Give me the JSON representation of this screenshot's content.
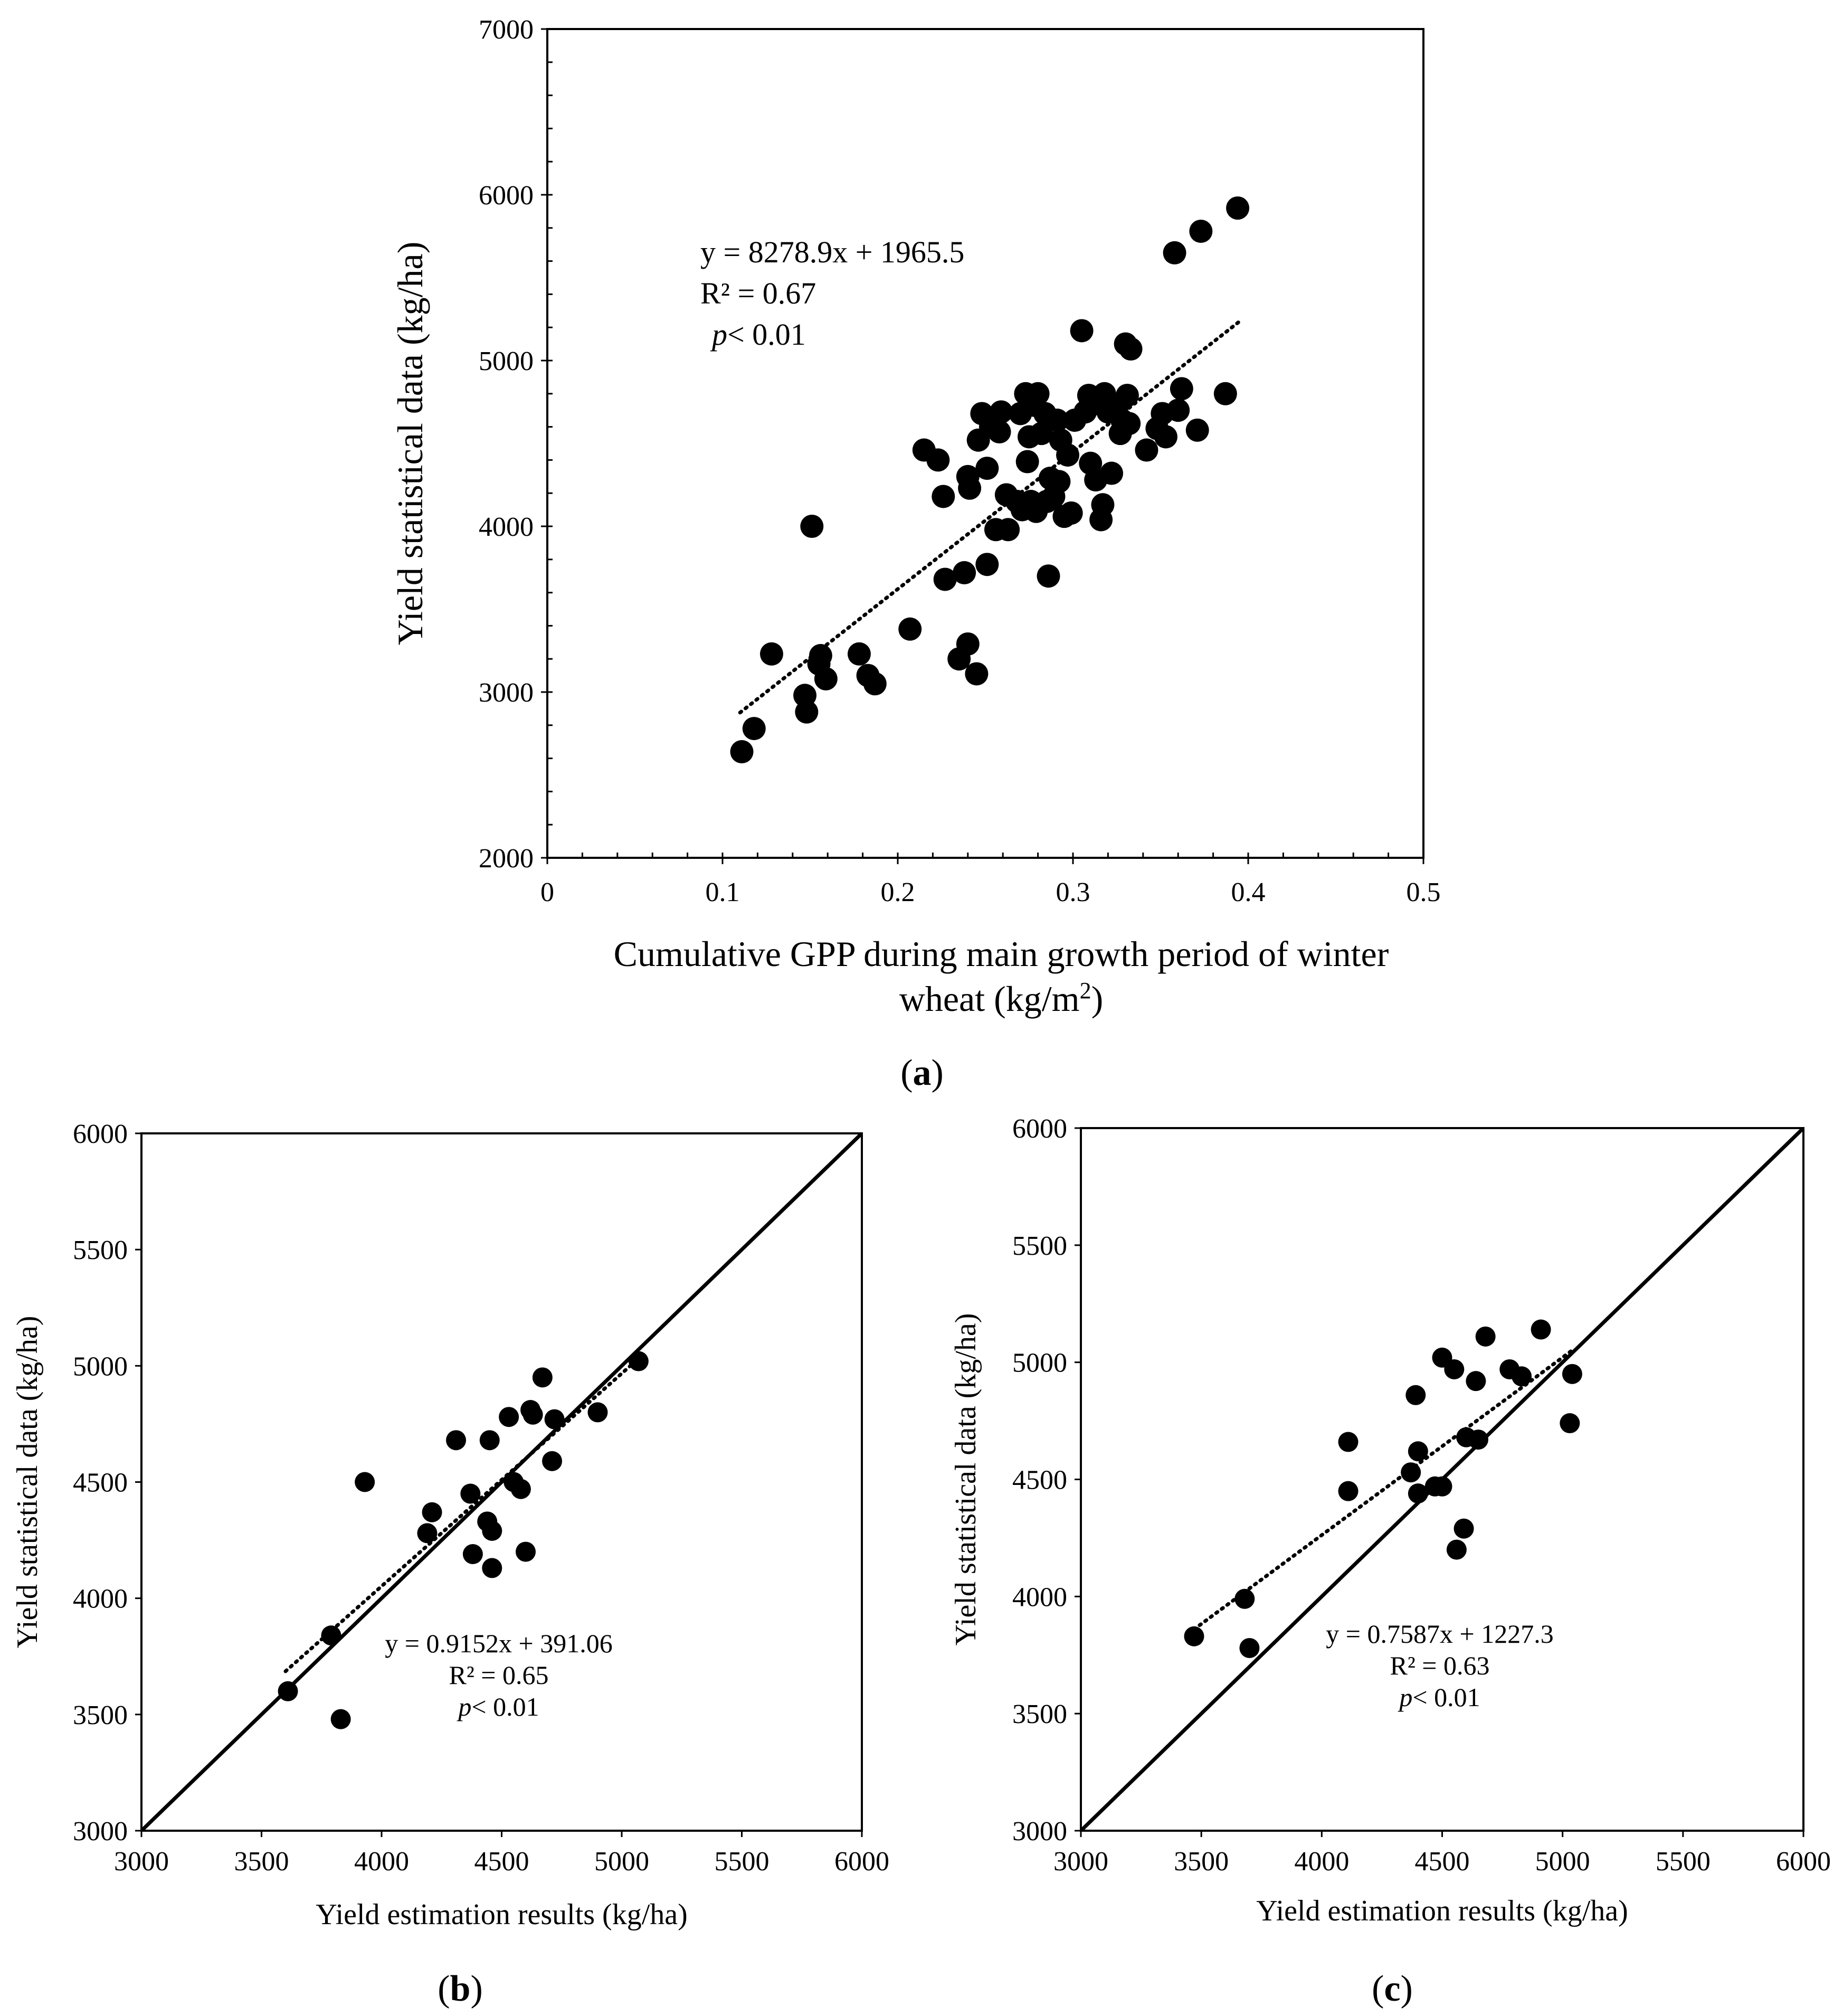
{
  "figure_captions": [
    "a",
    "b",
    "c"
  ],
  "chart_data": [
    {
      "id": "a",
      "type": "scatter",
      "caption": "a",
      "xlabel_lines": [
        "Cumulative GPP during main growth period of winter",
        "wheat (kg/m"
      ],
      "xlabel_sup": "2",
      "xlabel_close": ")",
      "ylabel": "Yield statistical data (kg/ha)",
      "xlim": [
        0,
        0.5
      ],
      "ylim": [
        2000,
        7000
      ],
      "xticks": [
        0,
        0.1,
        0.2,
        0.3,
        0.4,
        0.5
      ],
      "xtick_labels": [
        "0",
        "0.1",
        "0.2",
        "0.3",
        "0.4",
        "0.5"
      ],
      "yticks": [
        2000,
        3000,
        4000,
        5000,
        6000,
        7000
      ],
      "ytick_labels": [
        "2000",
        "3000",
        "4000",
        "5000",
        "6000",
        "7000"
      ],
      "equation": "y = 8278.9x + 1965.5",
      "r2": "R² = 0.67",
      "p_italic": "p",
      "p_rest": "< 0.01",
      "trendline": {
        "slope": 8278.9,
        "intercept": 1965.5,
        "x_range": [
          0.11,
          0.395
        ]
      },
      "points": [
        [
          0.111,
          2640
        ],
        [
          0.118,
          2780
        ],
        [
          0.128,
          3230
        ],
        [
          0.147,
          2980
        ],
        [
          0.148,
          2880
        ],
        [
          0.151,
          4000
        ],
        [
          0.156,
          3220
        ],
        [
          0.155,
          3170
        ],
        [
          0.159,
          3080
        ],
        [
          0.178,
          3230
        ],
        [
          0.183,
          3100
        ],
        [
          0.187,
          3050
        ],
        [
          0.207,
          3380
        ],
        [
          0.215,
          4460
        ],
        [
          0.223,
          4400
        ],
        [
          0.226,
          4180
        ],
        [
          0.227,
          3680
        ],
        [
          0.235,
          3200
        ],
        [
          0.238,
          3720
        ],
        [
          0.24,
          3290
        ],
        [
          0.24,
          4300
        ],
        [
          0.241,
          4230
        ],
        [
          0.245,
          3110
        ],
        [
          0.246,
          4520
        ],
        [
          0.248,
          4680
        ],
        [
          0.251,
          4350
        ],
        [
          0.251,
          3770
        ],
        [
          0.253,
          4600
        ],
        [
          0.256,
          3980
        ],
        [
          0.258,
          4570
        ],
        [
          0.259,
          4690
        ],
        [
          0.262,
          4190
        ],
        [
          0.263,
          3980
        ],
        [
          0.268,
          4150
        ],
        [
          0.27,
          4680
        ],
        [
          0.271,
          4100
        ],
        [
          0.273,
          4800
        ],
        [
          0.274,
          4390
        ],
        [
          0.275,
          4540
        ],
        [
          0.276,
          4150
        ],
        [
          0.278,
          4730
        ],
        [
          0.279,
          4090
        ],
        [
          0.28,
          4800
        ],
        [
          0.282,
          4560
        ],
        [
          0.284,
          4680
        ],
        [
          0.285,
          4150
        ],
        [
          0.286,
          3700
        ],
        [
          0.287,
          4290
        ],
        [
          0.289,
          4180
        ],
        [
          0.291,
          4640
        ],
        [
          0.292,
          4270
        ],
        [
          0.293,
          4520
        ],
        [
          0.295,
          4060
        ],
        [
          0.297,
          4430
        ],
        [
          0.299,
          4080
        ],
        [
          0.301,
          4640
        ],
        [
          0.305,
          5180
        ],
        [
          0.307,
          4690
        ],
        [
          0.309,
          4790
        ],
        [
          0.31,
          4380
        ],
        [
          0.313,
          4280
        ],
        [
          0.314,
          4740
        ],
        [
          0.316,
          4040
        ],
        [
          0.317,
          4130
        ],
        [
          0.318,
          4800
        ],
        [
          0.32,
          4690
        ],
        [
          0.322,
          4320
        ],
        [
          0.325,
          4720
        ],
        [
          0.327,
          4560
        ],
        [
          0.328,
          4640
        ],
        [
          0.33,
          5100
        ],
        [
          0.331,
          4790
        ],
        [
          0.332,
          4620
        ],
        [
          0.333,
          5070
        ],
        [
          0.342,
          4460
        ],
        [
          0.348,
          4590
        ],
        [
          0.351,
          4680
        ],
        [
          0.353,
          4540
        ],
        [
          0.358,
          5650
        ],
        [
          0.36,
          4700
        ],
        [
          0.362,
          4830
        ],
        [
          0.371,
          4580
        ],
        [
          0.373,
          5780
        ],
        [
          0.387,
          4800
        ],
        [
          0.394,
          5920
        ]
      ]
    },
    {
      "id": "b",
      "type": "scatter",
      "caption": "b",
      "xlabel": "Yield estimation results (kg/ha)",
      "ylabel": "Yield statistical data (kg/ha)",
      "xlim": [
        3000,
        6000
      ],
      "ylim": [
        3000,
        6000
      ],
      "xticks": [
        3000,
        3500,
        4000,
        4500,
        5000,
        5500,
        6000
      ],
      "xtick_labels": [
        "3000",
        "3500",
        "4000",
        "4500",
        "5000",
        "5500",
        "6000"
      ],
      "yticks": [
        3000,
        3500,
        4000,
        4500,
        5000,
        5500,
        6000
      ],
      "ytick_labels": [
        "3000",
        "3500",
        "4000",
        "4500",
        "5000",
        "5500",
        "6000"
      ],
      "equation": "y = 0.9152x + 391.06",
      "r2": "R² = 0.65",
      "p_italic": "p",
      "p_rest": "< 0.01",
      "one_to_one_line": true,
      "trendline": {
        "slope": 0.9152,
        "intercept": 391.06,
        "x_range": [
          3600,
          5060
        ]
      },
      "points": [
        [
          3610,
          3600
        ],
        [
          3790,
          3840
        ],
        [
          3830,
          3480
        ],
        [
          3930,
          4500
        ],
        [
          4190,
          4280
        ],
        [
          4210,
          4370
        ],
        [
          4310,
          4680
        ],
        [
          4370,
          4450
        ],
        [
          4380,
          4190
        ],
        [
          4440,
          4330
        ],
        [
          4450,
          4680
        ],
        [
          4460,
          4130
        ],
        [
          4460,
          4290
        ],
        [
          4530,
          4780
        ],
        [
          4550,
          4500
        ],
        [
          4580,
          4470
        ],
        [
          4600,
          4200
        ],
        [
          4620,
          4810
        ],
        [
          4630,
          4790
        ],
        [
          4670,
          4950
        ],
        [
          4710,
          4590
        ],
        [
          4720,
          4770
        ],
        [
          4900,
          4800
        ],
        [
          5070,
          5020
        ]
      ]
    },
    {
      "id": "c",
      "type": "scatter",
      "caption": "c",
      "xlabel": "Yield estimation results (kg/ha)",
      "ylabel": "Yield statistical data (kg/ha)",
      "xlim": [
        3000,
        6000
      ],
      "ylim": [
        3000,
        6000
      ],
      "xticks": [
        3000,
        3500,
        4000,
        4500,
        5000,
        5500,
        6000
      ],
      "xtick_labels": [
        "3000",
        "3500",
        "4000",
        "4500",
        "5000",
        "5500",
        "6000"
      ],
      "yticks": [
        3000,
        3500,
        4000,
        4500,
        5000,
        5500,
        6000
      ],
      "ytick_labels": [
        "3000",
        "3500",
        "4000",
        "4500",
        "5000",
        "5500",
        "6000"
      ],
      "equation": "y = 0.7587x + 1227.3",
      "r2": "R² = 0.63",
      "p_italic": "p",
      "p_rest": "< 0.01",
      "one_to_one_line": true,
      "trendline": {
        "slope": 0.7587,
        "intercept": 1227.3,
        "x_range": [
          3470,
          5040
        ]
      },
      "points": [
        [
          3470,
          3830
        ],
        [
          3680,
          3990
        ],
        [
          3700,
          3780
        ],
        [
          4110,
          4450
        ],
        [
          4110,
          4660
        ],
        [
          4370,
          4530
        ],
        [
          4390,
          4860
        ],
        [
          4400,
          4620
        ],
        [
          4400,
          4440
        ],
        [
          4470,
          4470
        ],
        [
          4500,
          4470
        ],
        [
          4500,
          5020
        ],
        [
          4550,
          4970
        ],
        [
          4560,
          4200
        ],
        [
          4590,
          4290
        ],
        [
          4600,
          4680
        ],
        [
          4640,
          4920
        ],
        [
          4650,
          4670
        ],
        [
          4680,
          5110
        ],
        [
          4780,
          4970
        ],
        [
          4830,
          4940
        ],
        [
          4910,
          5140
        ],
        [
          5030,
          4740
        ],
        [
          5040,
          4950
        ]
      ]
    }
  ]
}
